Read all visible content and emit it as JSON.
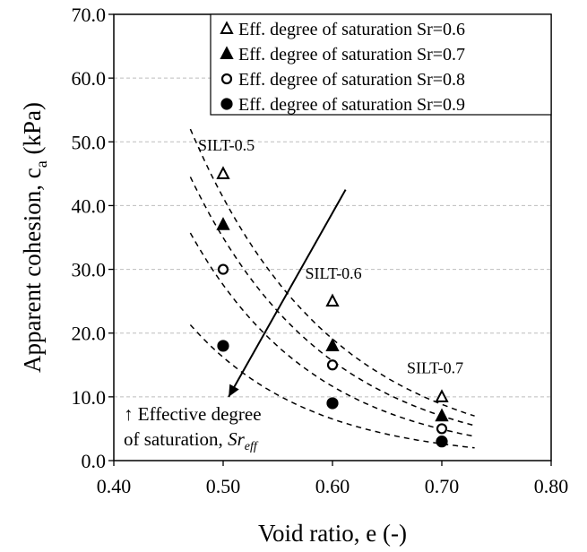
{
  "chart_data": {
    "type": "scatter",
    "xlabel": "Void ratio, e (-)",
    "ylabel_main": "Apparent cohesion, c",
    "ylabel_sub": "a",
    "ylabel_unit": " (kPa)",
    "xlim": [
      0.4,
      0.8
    ],
    "ylim": [
      0,
      70
    ],
    "xticks": [
      "0.40",
      "0.50",
      "0.60",
      "0.70",
      "0.80"
    ],
    "yticks": [
      "0.0",
      "10.0",
      "20.0",
      "30.0",
      "40.0",
      "50.0",
      "60.0",
      "70.0"
    ],
    "grid": "horizontal dashed",
    "legend_position": "top-right",
    "series": [
      {
        "name": "Eff. degree of saturation Sr=0.6",
        "marker": "triangle-open",
        "x": [
          0.5,
          0.6,
          0.7
        ],
        "y": [
          45,
          25,
          10
        ],
        "curve": {
          "x0": 0.47,
          "x1": 0.73,
          "y0": 52,
          "y1": 7
        }
      },
      {
        "name": "Eff. degree of saturation Sr=0.7",
        "marker": "triangle-filled",
        "x": [
          0.5,
          0.6,
          0.7
        ],
        "y": [
          37,
          18,
          7
        ],
        "curve": {
          "x0": 0.47,
          "x1": 0.73,
          "y0": 44.5,
          "y1": 5.5
        }
      },
      {
        "name": "Eff. degree of saturation Sr=0.8",
        "marker": "circle-open",
        "x": [
          0.5,
          0.6,
          0.7
        ],
        "y": [
          30,
          15,
          5
        ],
        "curve": {
          "x0": 0.47,
          "x1": 0.73,
          "y0": 35.7,
          "y1": 3.8
        }
      },
      {
        "name": "Eff. degree of saturation Sr=0.9",
        "marker": "circle-filled",
        "x": [
          0.5,
          0.6,
          0.7
        ],
        "y": [
          18,
          9,
          3
        ],
        "curve": {
          "x0": 0.47,
          "x1": 0.73,
          "y0": 21.3,
          "y1": 2
        }
      }
    ],
    "annotations": [
      {
        "text": "SILT-0.5",
        "x": 0.477,
        "y": 48.6
      },
      {
        "text": "SILT-0.6",
        "x": 0.575,
        "y": 28.5
      },
      {
        "text": "SILT-0.7",
        "x": 0.668,
        "y": 13.7
      }
    ],
    "arrow": {
      "from": [
        0.612,
        42.5
      ],
      "to": [
        0.505,
        10
      ]
    },
    "arrow_note": {
      "line1": "↑ Effective degree",
      "line2": "of saturation, ",
      "symbol": "Sr",
      "subscript": "eff"
    }
  }
}
